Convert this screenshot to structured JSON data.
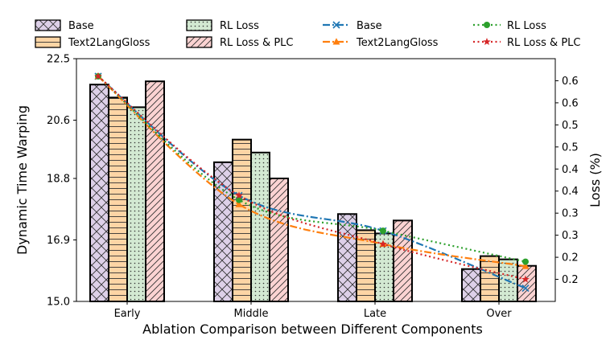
{
  "chart_data": {
    "type": "bar+line",
    "xlabel": "Ablation Comparison between Different Components",
    "ylabel_left": "Dynamic Time Warping",
    "ylabel_right": "Loss (%)",
    "categories": [
      "Early",
      "Middle",
      "Late",
      "Over"
    ],
    "ylim_left": [
      15.0,
      22.5
    ],
    "yticks_left": [
      "15.0",
      "16.9",
      "18.8",
      "20.6",
      "22.5"
    ],
    "ylim_right": [
      0.1,
      0.65
    ],
    "yticks_right": [
      {
        "value": 0.15,
        "label": "0.2"
      },
      {
        "value": 0.2,
        "label": "0.2"
      },
      {
        "value": 0.25,
        "label": "0.3"
      },
      {
        "value": 0.3,
        "label": "0.3"
      },
      {
        "value": 0.35,
        "label": "0.4"
      },
      {
        "value": 0.4,
        "label": "0.4"
      },
      {
        "value": 0.45,
        "label": "0.5"
      },
      {
        "value": 0.5,
        "label": "0.5"
      },
      {
        "value": 0.55,
        "label": "0.6"
      },
      {
        "value": 0.6,
        "label": "0.6"
      }
    ],
    "bar_series": [
      {
        "name": "Base",
        "values": [
          21.7,
          19.3,
          17.7,
          16.0
        ],
        "fill": "#ddd0e8",
        "pattern": "cross"
      },
      {
        "name": "Text2LangGloss",
        "values": [
          21.3,
          20.0,
          17.2,
          16.4
        ],
        "fill": "#fdd5a5",
        "pattern": "hlines"
      },
      {
        "name": "RL Loss",
        "values": [
          21.0,
          19.6,
          17.1,
          16.3
        ],
        "fill": "#d3e9d2",
        "pattern": "dots"
      },
      {
        "name": "RL Loss & PLC",
        "values": [
          21.8,
          18.8,
          17.5,
          16.1
        ],
        "fill": "#fbd3d2",
        "pattern": "diag"
      }
    ],
    "line_series": [
      {
        "name": "Base",
        "values": [
          0.61,
          0.34,
          0.26,
          0.13
        ],
        "color": "#1f77b4",
        "marker": "x",
        "dash": "dashdot"
      },
      {
        "name": "Text2LangGloss",
        "values": [
          0.61,
          0.32,
          0.23,
          0.18
        ],
        "color": "#ff7f0e",
        "marker": "triangle",
        "dash": "dashdot"
      },
      {
        "name": "RL Loss",
        "values": [
          0.61,
          0.33,
          0.26,
          0.19
        ],
        "color": "#2ca02c",
        "marker": "circle",
        "dash": "dotted"
      },
      {
        "name": "RL Loss & PLC",
        "values": [
          0.61,
          0.34,
          0.23,
          0.15
        ],
        "color": "#d62728",
        "marker": "star",
        "dash": "dotted"
      }
    ],
    "legend_position": "top"
  }
}
